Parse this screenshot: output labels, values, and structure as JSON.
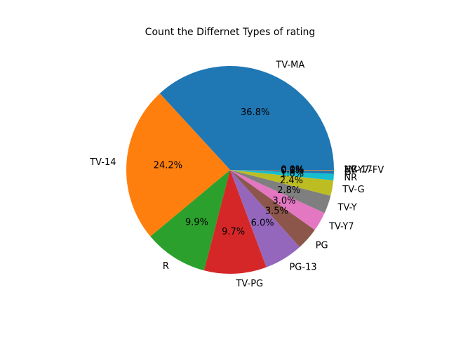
{
  "chart_data": {
    "type": "pie",
    "title": "Count the Differnet Types of rating",
    "start_angle_deg": 0,
    "direction": "counterclockwise",
    "slices": [
      {
        "label": "TV-MA",
        "value": 36.8,
        "pct_label": "36.8%",
        "color": "#1f77b4"
      },
      {
        "label": "TV-14",
        "value": 24.2,
        "pct_label": "24.2%",
        "color": "#ff7f0e"
      },
      {
        "label": "R",
        "value": 9.9,
        "pct_label": "9.9%",
        "color": "#2ca02c"
      },
      {
        "label": "TV-PG",
        "value": 9.7,
        "pct_label": "9.7%",
        "color": "#d62728"
      },
      {
        "label": "PG-13",
        "value": 6.0,
        "pct_label": "6.0%",
        "color": "#9467bd"
      },
      {
        "label": "PG",
        "value": 3.5,
        "pct_label": "3.5%",
        "color": "#8c564b"
      },
      {
        "label": "TV-Y7",
        "value": 3.0,
        "pct_label": "3.0%",
        "color": "#e377c2"
      },
      {
        "label": "TV-Y",
        "value": 2.8,
        "pct_label": "2.8%",
        "color": "#7f7f7f"
      },
      {
        "label": "TV-G",
        "value": 2.4,
        "pct_label": "2.4%",
        "color": "#bcbd22"
      },
      {
        "label": "NR",
        "value": 1.0,
        "pct_label": "1.0%",
        "color": "#17becf"
      },
      {
        "label": "G",
        "value": 0.5,
        "pct_label": "0.5%",
        "color": "#1f77b4"
      },
      {
        "label": "TV-Y7-FV",
        "value": 0.1,
        "pct_label": "0.1%",
        "color": "#ff7f0e"
      },
      {
        "label": "NC-17",
        "value": 0.0,
        "pct_label": "0.0%",
        "color": "#2ca02c"
      },
      {
        "label": "UR",
        "value": 0.0,
        "pct_label": "0.0%",
        "color": "#d62728"
      }
    ]
  }
}
